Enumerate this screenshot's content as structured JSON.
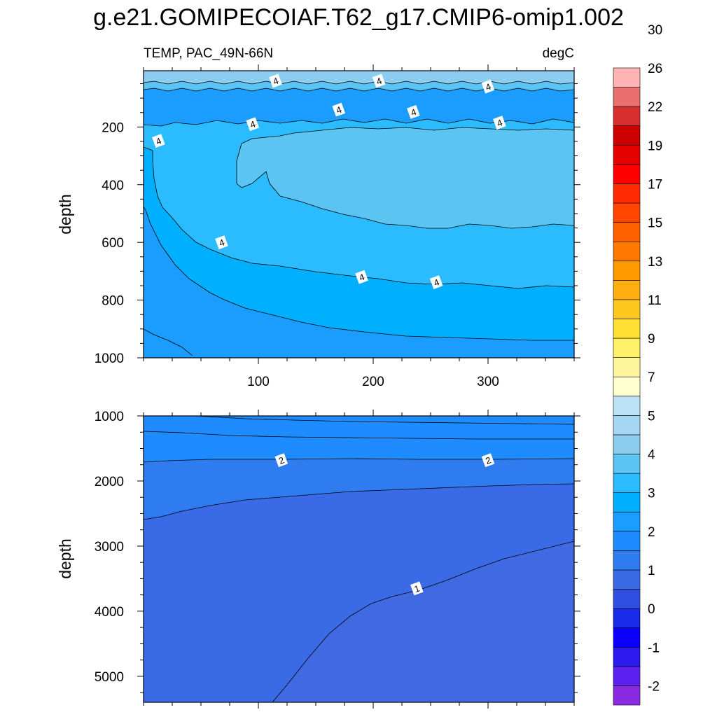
{
  "title": "g.e21.GOMIPECOIAF.T62_g17.CMIP6-omip1.002",
  "subtitle_left": "TEMP, PAC_49N-66N",
  "subtitle_right": "degC",
  "colorbar": {
    "colors": [
      "#8a2be2",
      "#5e20f0",
      "#2c1af0",
      "#0a00ff",
      "#1a2be8",
      "#2f4fe0",
      "#3a6ae6",
      "#2f7cf0",
      "#1e8cff",
      "#1a9dff",
      "#00b0ff",
      "#2bbcff",
      "#5cc4f3",
      "#8dcdef",
      "#a6d7f2",
      "#bde2f6",
      "#ffffd0",
      "#fff59d",
      "#fff06a",
      "#ffe033",
      "#ffc820",
      "#ffad10",
      "#ff9900",
      "#ff7a00",
      "#ff6000",
      "#ff4500",
      "#ff2a00",
      "#ff0000",
      "#e60000",
      "#cc0000",
      "#d92e2e",
      "#ea6f6f",
      "#ffb3b3"
    ],
    "labels": [
      "-2",
      "-1",
      "0",
      "1",
      "2",
      "3",
      "4",
      "5",
      "7",
      "9",
      "11",
      "13",
      "15",
      "17",
      "19",
      "22",
      "26",
      "30"
    ]
  },
  "chart_data": [
    {
      "type": "contour",
      "panel": "upper",
      "variable": "TEMP",
      "units": "degC",
      "xlabel": "",
      "ylabel": "depth",
      "xlim": [
        0,
        375
      ],
      "ylim": [
        1000,
        5
      ],
      "yreversed": true,
      "xticks": [
        100,
        200,
        300
      ],
      "yticks": [
        200,
        400,
        600,
        800,
        1000
      ],
      "contour_labels": [
        {
          "x": 115,
          "y": 40,
          "text": "4"
        },
        {
          "x": 205,
          "y": 40,
          "text": "4"
        },
        {
          "x": 300,
          "y": 60,
          "text": "4"
        },
        {
          "x": 170,
          "y": 140,
          "text": "4"
        },
        {
          "x": 235,
          "y": 148,
          "text": "4"
        },
        {
          "x": 95,
          "y": 190,
          "text": "4"
        },
        {
          "x": 310,
          "y": 185,
          "text": "4"
        },
        {
          "x": 13,
          "y": 248,
          "text": "4"
        },
        {
          "x": 68,
          "y": 600,
          "text": "4"
        },
        {
          "x": 190,
          "y": 720,
          "text": "4"
        },
        {
          "x": 255,
          "y": 738,
          "text": "4"
        }
      ]
    },
    {
      "type": "contour",
      "panel": "lower",
      "variable": "TEMP",
      "units": "degC",
      "xlabel": "",
      "ylabel": "depth",
      "xlim": [
        0,
        375
      ],
      "ylim": [
        5400,
        1000
      ],
      "yreversed": true,
      "xticks": [
        100,
        200,
        300
      ],
      "yticks": [
        1000,
        2000,
        3000,
        4000,
        5000
      ],
      "contour_labels": [
        {
          "x": 120,
          "y": 1680,
          "text": "2"
        },
        {
          "x": 300,
          "y": 1680,
          "text": "2"
        },
        {
          "x": 238,
          "y": 3650,
          "text": "1"
        }
      ]
    }
  ]
}
